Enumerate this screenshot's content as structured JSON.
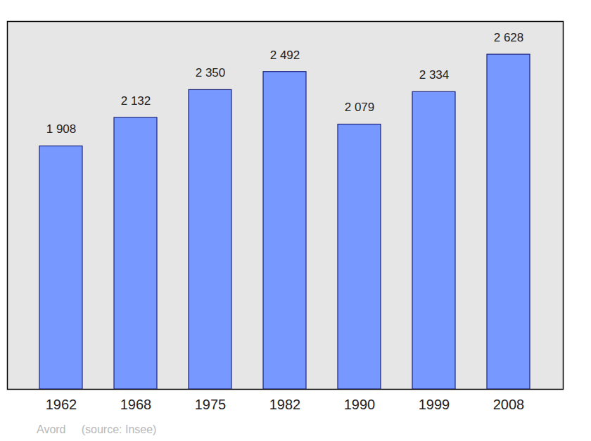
{
  "chart_data": {
    "type": "bar",
    "categories": [
      "1962",
      "1968",
      "1975",
      "1982",
      "1990",
      "1999",
      "2008"
    ],
    "values": [
      1908,
      2132,
      2350,
      2492,
      2079,
      2334,
      2628
    ],
    "value_labels": [
      "1 908",
      "2 132",
      "2 350",
      "2 492",
      "2 079",
      "2 334",
      "2 628"
    ],
    "data_labels": true,
    "color": "#7799ff",
    "ylim": [
      0,
      2888
    ],
    "tick_labels": "x",
    "caption": "Avord     (source: Insee)"
  }
}
